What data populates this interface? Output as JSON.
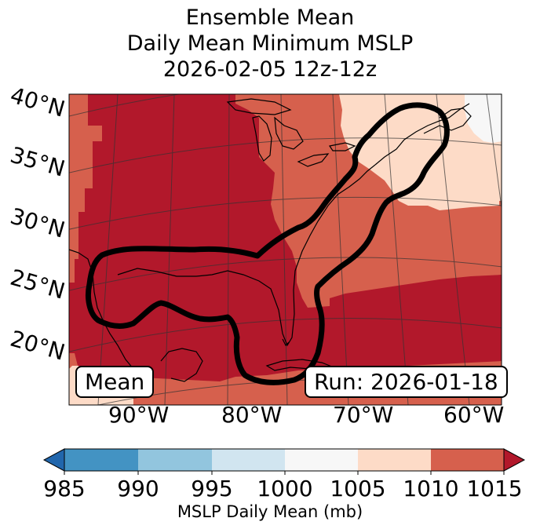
{
  "title_lines": [
    "Ensemble Mean",
    "Daily Mean Minimum MSLP",
    "2026-02-05 12z-12z"
  ],
  "map": {
    "lat_labels": [
      "40°N",
      "35°N",
      "30°N",
      "25°N",
      "20°N"
    ],
    "lon_labels": [
      "90°W",
      "80°W",
      "70°W",
      "60°W"
    ],
    "mean_label": "Mean",
    "run_label": "Run: 2026-01-18",
    "contour_level_mb": 1010,
    "field_fill_colors": {
      "dark_red": "#b2182b",
      "red": "#d6604d",
      "peach": "#fddbc7",
      "white": "#f7f7f7"
    }
  },
  "colorbar": {
    "ticks": [
      "985",
      "990",
      "995",
      "1000",
      "1005",
      "1010",
      "1015"
    ],
    "colors": [
      "#4393c3",
      "#92c5de",
      "#d1e5f0",
      "#f7f7f7",
      "#fddbc7",
      "#d6604d"
    ],
    "under_color": "#2166ac",
    "over_color": "#b2182b",
    "label": "MSLP Daily Mean (mb)"
  }
}
